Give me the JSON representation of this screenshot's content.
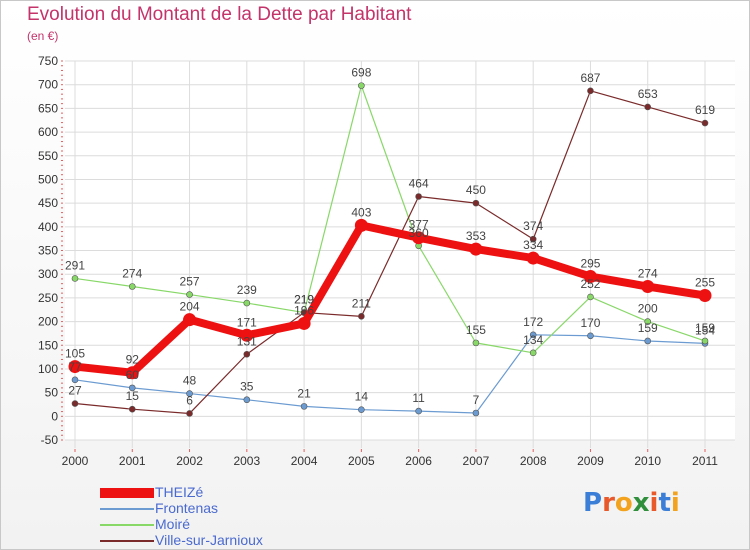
{
  "header": {
    "title": "Evolution du Montant de la Dette par Habitant",
    "unit": "(en €)"
  },
  "logo": {
    "text": "Proxiti",
    "letters": [
      "P",
      "r",
      "o",
      "x",
      "i",
      "t",
      "i"
    ],
    "colors": [
      "#3a7ed8",
      "#e8582a",
      "#f2a21c",
      "#2f8f3a",
      "#e8582a",
      "#3a7ed8",
      "#f2a21c"
    ]
  },
  "chart_data": {
    "type": "line",
    "title": "Evolution du Montant de la Dette par Habitant",
    "subtitle": "(en €)",
    "xlabel": "",
    "ylabel": "",
    "x": [
      "2000",
      "2001",
      "2002",
      "2003",
      "2004",
      "2005",
      "2006",
      "2007",
      "2008",
      "2009",
      "2010",
      "2011"
    ],
    "ylim": [
      -50,
      750
    ],
    "yticks": [
      -50,
      0,
      50,
      100,
      150,
      200,
      250,
      300,
      350,
      400,
      450,
      500,
      550,
      600,
      650,
      700,
      750
    ],
    "grid": true,
    "legend_position": "bottom-left",
    "series": [
      {
        "name": "Frontenas",
        "color": "#6b9bd1",
        "values": [
          77,
          60,
          48,
          35,
          21,
          14,
          11,
          7,
          172,
          170,
          159,
          154
        ],
        "labels": [
          "77",
          "60",
          "48",
          "35",
          "21",
          "14",
          "11",
          "7",
          "172",
          "170",
          "159",
          "154"
        ]
      },
      {
        "name": "Moiré",
        "color": "#88d868",
        "values": [
          291,
          274,
          257,
          239,
          219,
          698,
          360,
          155,
          134,
          252,
          200,
          159
        ],
        "labels": [
          "291",
          "274",
          "257",
          "239",
          "219",
          "698",
          "360",
          "155",
          "134",
          "252",
          "200",
          "159"
        ]
      },
      {
        "name": "Ville-sur-Jarnioux",
        "color": "#7a2a2a",
        "values": [
          27,
          15,
          6,
          131,
          219,
          211,
          464,
          450,
          374,
          687,
          653,
          619
        ],
        "labels": [
          "27",
          "15",
          "6",
          "131",
          "219",
          "211",
          "464",
          "450",
          "374",
          "687",
          "653",
          "619"
        ]
      },
      {
        "name": "THEIZé",
        "color": "#ee1111",
        "values": [
          105,
          92,
          204,
          171,
          196,
          403,
          377,
          353,
          334,
          295,
          274,
          255
        ],
        "labels": [
          "105",
          "92",
          "204",
          "171",
          "196",
          "403",
          "377",
          "353",
          "334",
          "295",
          "274",
          "255"
        ]
      }
    ],
    "legend_order": [
      "THEIZé",
      "Frontenas",
      "Moiré",
      "Ville-sur-Jarnioux"
    ]
  }
}
